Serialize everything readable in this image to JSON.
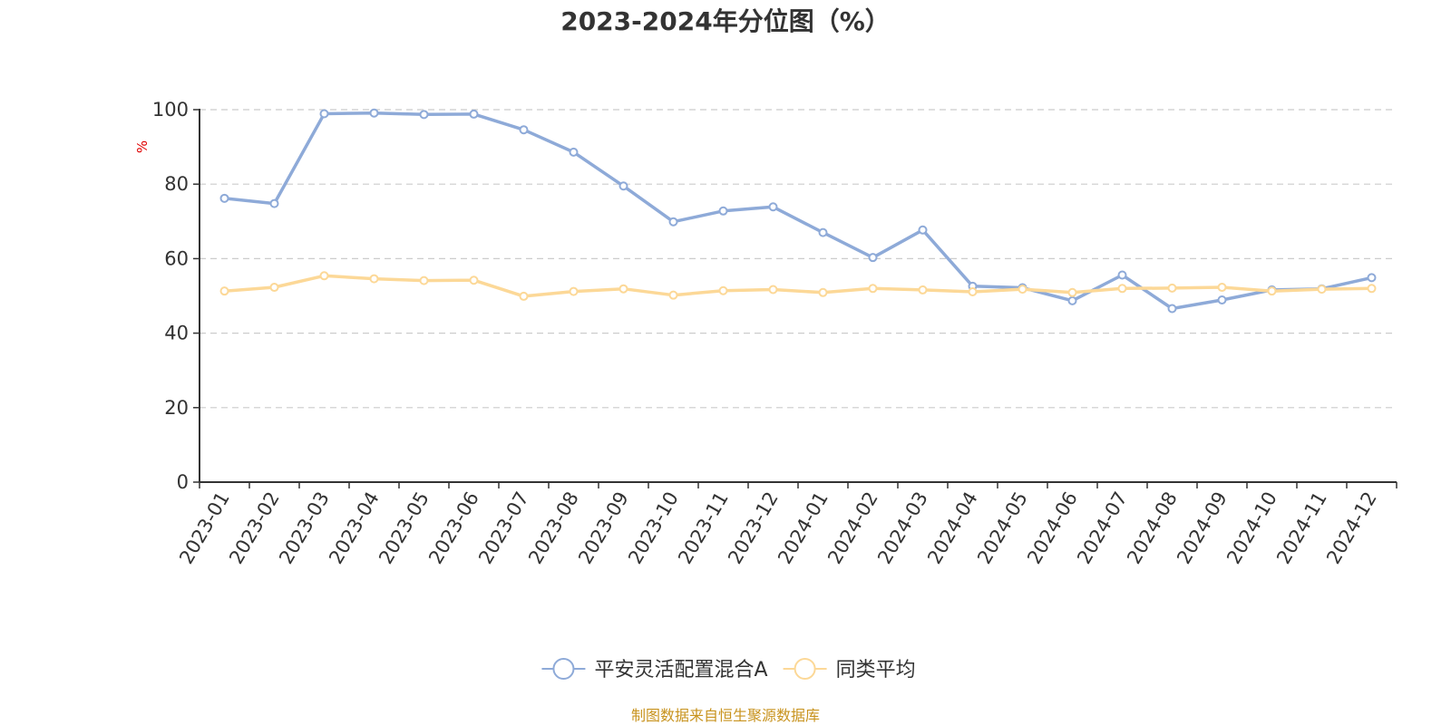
{
  "chart_data": {
    "type": "line",
    "title": "2023-2024年分位图（%）",
    "ylabel": "%",
    "ylim": [
      0,
      100
    ],
    "yticks": [
      0,
      20,
      40,
      60,
      80,
      100
    ],
    "ytick_labels": [
      "0",
      "20",
      "40",
      "60",
      "80",
      "100"
    ],
    "grid": true,
    "legend_position": "bottom",
    "categories": [
      "2023-01",
      "2023-02",
      "2023-03",
      "2023-04",
      "2023-05",
      "2023-06",
      "2023-07",
      "2023-08",
      "2023-09",
      "2023-10",
      "2023-11",
      "2023-12",
      "2024-01",
      "2024-02",
      "2024-03",
      "2024-04",
      "2024-05",
      "2024-06",
      "2024-07",
      "2024-08",
      "2024-09",
      "2024-10",
      "2024-11",
      "2024-12"
    ],
    "series": [
      {
        "name": "平安灵活配置混合A",
        "color": "#8eaad8",
        "values": [
          76.2,
          74.8,
          98.9,
          99.1,
          98.7,
          98.8,
          94.6,
          88.6,
          79.5,
          69.9,
          72.8,
          73.9,
          67.0,
          60.3,
          67.7,
          52.6,
          52.2,
          48.7,
          55.6,
          46.6,
          48.9,
          51.6,
          51.9,
          54.9
        ]
      },
      {
        "name": "同类平均",
        "color": "#fcd897",
        "values": [
          51.3,
          52.3,
          55.4,
          54.6,
          54.1,
          54.2,
          49.9,
          51.2,
          51.9,
          50.2,
          51.4,
          51.7,
          50.9,
          52.0,
          51.6,
          51.1,
          51.8,
          50.9,
          52.0,
          52.1,
          52.3,
          51.3,
          51.8,
          52.0
        ]
      }
    ]
  },
  "source": "制图数据来自恒生聚源数据库"
}
